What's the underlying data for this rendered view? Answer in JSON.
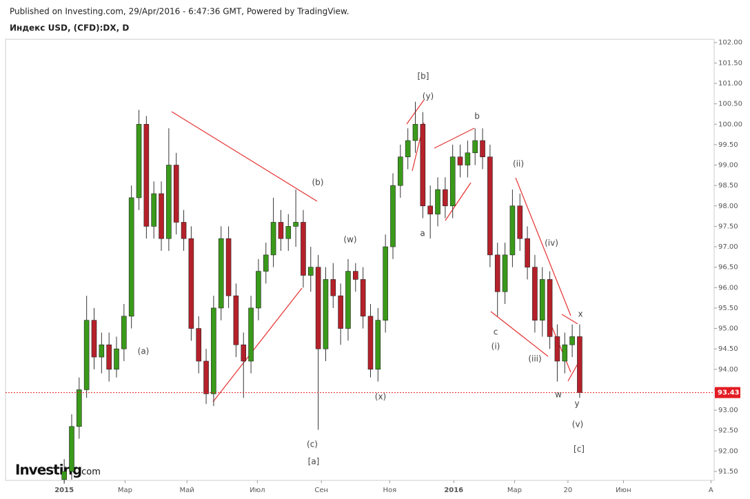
{
  "header": {
    "published": "Published on Investing.com, 29/Apr/2016 - 6:47:36 GMT, Powered by TradingView.",
    "symbol": "Индекс USD, (CFD):DX, D"
  },
  "logo": {
    "brand": "Investing",
    "suffix": ".com"
  },
  "chart_data": {
    "type": "candlestick",
    "up_color": "#3a9a1a",
    "down_color": "#b5212a",
    "last_color": "#e31b23",
    "x": [
      0,
      7,
      14,
      21,
      28,
      35,
      42,
      49,
      56,
      63,
      70,
      77,
      84,
      91,
      98,
      105,
      112,
      119,
      126,
      133,
      140,
      147,
      154,
      161,
      168,
      175,
      182,
      189,
      196,
      203,
      210,
      217,
      224,
      231,
      238,
      245,
      252,
      259,
      266,
      273,
      280,
      287,
      294,
      301,
      308,
      315,
      322,
      329,
      336,
      343,
      350,
      357,
      364,
      371,
      378,
      385,
      392,
      399,
      406,
      413,
      420,
      427,
      434,
      441,
      448,
      455,
      462,
      469,
      476,
      483
    ],
    "open": [
      91.3,
      91.5,
      92.6,
      93.5,
      95.2,
      94.3,
      94.6,
      94.0,
      94.5,
      95.3,
      98.2,
      100.0,
      97.5,
      98.3,
      97.2,
      99.0,
      97.6,
      97.2,
      95.0,
      94.2,
      93.4,
      95.5,
      97.2,
      95.8,
      94.6,
      94.2,
      95.5,
      96.4,
      96.8,
      97.6,
      97.2,
      97.5,
      97.6,
      96.3,
      96.5,
      94.5,
      96.2,
      95.8,
      95.0,
      96.4,
      96.2,
      95.3,
      94.0,
      95.2,
      97.0,
      98.5,
      99.2,
      99.6,
      100.0,
      98.0,
      97.8,
      98.4,
      98.0,
      99.2,
      99.0,
      99.3,
      99.6,
      99.2,
      96.8,
      95.9,
      96.8,
      98.0,
      97.2,
      96.5,
      95.2,
      96.2,
      94.8,
      94.2,
      94.6,
      94.8
    ],
    "high": [
      91.8,
      92.9,
      93.8,
      95.8,
      95.5,
      94.9,
      94.9,
      94.8,
      95.6,
      98.5,
      100.35,
      100.2,
      98.6,
      98.6,
      99.9,
      99.3,
      97.9,
      97.5,
      95.3,
      94.5,
      95.8,
      97.5,
      97.5,
      96.1,
      94.9,
      95.8,
      96.7,
      97.1,
      98.2,
      97.9,
      97.8,
      98.4,
      97.9,
      97.0,
      96.8,
      96.5,
      96.6,
      96.1,
      96.7,
      96.6,
      96.5,
      95.6,
      95.5,
      97.3,
      98.8,
      99.5,
      99.9,
      100.55,
      100.3,
      98.5,
      98.7,
      98.7,
      99.5,
      99.5,
      99.6,
      99.9,
      99.9,
      99.5,
      97.1,
      97.1,
      98.4,
      98.3,
      97.5,
      96.8,
      96.5,
      96.4,
      95.1,
      94.9,
      95.1,
      95.1
    ],
    "low": [
      91.2,
      91.3,
      92.3,
      93.3,
      94.0,
      93.9,
      93.7,
      93.8,
      94.2,
      95.0,
      97.9,
      97.2,
      97.2,
      96.9,
      96.9,
      97.3,
      96.9,
      94.7,
      93.9,
      93.15,
      93.1,
      95.2,
      95.5,
      94.3,
      93.3,
      93.9,
      95.2,
      96.1,
      96.5,
      96.9,
      96.9,
      97.0,
      96.0,
      95.9,
      92.52,
      94.2,
      95.5,
      94.6,
      94.7,
      95.9,
      95.0,
      93.8,
      93.7,
      94.9,
      96.7,
      98.2,
      98.9,
      99.3,
      97.7,
      97.2,
      97.5,
      97.7,
      97.7,
      98.7,
      98.7,
      99.0,
      98.9,
      96.5,
      95.3,
      95.6,
      96.5,
      96.9,
      96.2,
      94.9,
      94.8,
      94.5,
      93.7,
      93.9,
      94.3,
      93.3
    ],
    "close": [
      91.5,
      92.6,
      93.5,
      95.2,
      94.3,
      94.6,
      94.0,
      94.5,
      95.3,
      98.2,
      100.0,
      97.5,
      98.3,
      97.2,
      99.0,
      97.6,
      97.2,
      95.0,
      94.2,
      93.4,
      95.5,
      97.2,
      95.8,
      94.6,
      94.2,
      95.5,
      96.4,
      96.8,
      97.6,
      97.2,
      97.5,
      97.6,
      96.3,
      96.5,
      94.5,
      96.2,
      95.8,
      95.0,
      96.4,
      96.2,
      95.3,
      94.0,
      95.2,
      97.0,
      98.5,
      99.2,
      99.6,
      100.0,
      98.0,
      97.8,
      98.4,
      98.0,
      99.2,
      99.0,
      99.3,
      99.6,
      99.2,
      96.8,
      95.9,
      96.8,
      98.0,
      97.2,
      96.5,
      95.2,
      96.2,
      94.8,
      94.2,
      94.6,
      94.8,
      93.43
    ],
    "last_price": 93.43,
    "xlim": [
      -55,
      609
    ],
    "xticks": [
      {
        "value": 0,
        "label": "2015"
      },
      {
        "value": 57,
        "label": "Мар"
      },
      {
        "value": 115,
        "label": "Май"
      },
      {
        "value": 181,
        "label": "Июл"
      },
      {
        "value": 241,
        "label": "Сен"
      },
      {
        "value": 305,
        "label": "Ноя"
      },
      {
        "value": 365,
        "label": "2016"
      },
      {
        "value": 422,
        "label": "Мар"
      },
      {
        "value": 472,
        "label": "20"
      },
      {
        "value": 524,
        "label": "Июн"
      },
      {
        "value": 606,
        "label": "А"
      }
    ],
    "ylim": [
      91.28,
      102.08
    ],
    "yticks": [
      {
        "value": 91.5,
        "label": "91.50"
      },
      {
        "value": 92,
        "label": "92.00"
      },
      {
        "value": 92.5,
        "label": "92.50"
      },
      {
        "value": 93,
        "label": "93.00"
      },
      {
        "value": 93.5,
        "label": "93.50"
      },
      {
        "value": 94,
        "label": "94.00"
      },
      {
        "value": 94.5,
        "label": "94.50"
      },
      {
        "value": 95,
        "label": "95.00"
      },
      {
        "value": 95.5,
        "label": "95.50"
      },
      {
        "value": 96,
        "label": "96.00"
      },
      {
        "value": 96.5,
        "label": "96.50"
      },
      {
        "value": 97,
        "label": "97.00"
      },
      {
        "value": 97.5,
        "label": "97.50"
      },
      {
        "value": 98,
        "label": "98.00"
      },
      {
        "value": 98.5,
        "label": "98.50"
      },
      {
        "value": 99,
        "label": "99.00"
      },
      {
        "value": 99.5,
        "label": "99.50"
      },
      {
        "value": 100,
        "label": "100.00"
      },
      {
        "value": 100.5,
        "label": "100.50"
      },
      {
        "value": 101,
        "label": "101.00"
      },
      {
        "value": 101.5,
        "label": "101.50"
      },
      {
        "value": 102,
        "label": "102.00"
      }
    ],
    "annotations": [
      "(a)",
      "(b)",
      "(c)",
      "[a]",
      "[b]",
      "(y)",
      "b",
      "a",
      "(w)",
      "(x)",
      "c",
      "(i)",
      "(ii)",
      "(iii)",
      "(iv)",
      "x",
      "w",
      "y",
      "(v)",
      "[c]"
    ]
  }
}
